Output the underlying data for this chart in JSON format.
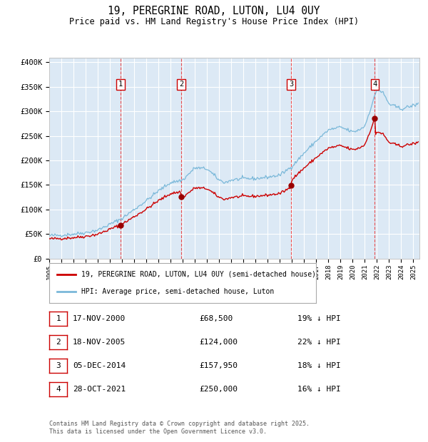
{
  "title": "19, PEREGRINE ROAD, LUTON, LU4 0UY",
  "subtitle": "Price paid vs. HM Land Registry's House Price Index (HPI)",
  "ylim": [
    0,
    410000
  ],
  "yticks": [
    0,
    50000,
    100000,
    150000,
    200000,
    250000,
    300000,
    350000,
    400000
  ],
  "ytick_labels": [
    "£0",
    "£50K",
    "£100K",
    "£150K",
    "£200K",
    "£250K",
    "£300K",
    "£350K",
    "£400K"
  ],
  "xlim_start": 1995.0,
  "xlim_end": 2025.5,
  "background_color": "#ffffff",
  "plot_bg_color": "#dce9f5",
  "grid_color": "#ffffff",
  "hpi_color": "#7ab8d9",
  "price_color": "#cc0000",
  "sale_marker_color": "#990000",
  "vline_color": "#ee3333",
  "transactions": [
    {
      "label": "1",
      "date_num": 2000.88,
      "price": 68500
    },
    {
      "label": "2",
      "date_num": 2005.88,
      "price": 124000
    },
    {
      "label": "3",
      "date_num": 2014.92,
      "price": 157950
    },
    {
      "label": "4",
      "date_num": 2021.82,
      "price": 250000
    }
  ],
  "legend_price_label": "19, PEREGRINE ROAD, LUTON, LU4 0UY (semi-detached house)",
  "legend_hpi_label": "HPI: Average price, semi-detached house, Luton",
  "table_rows": [
    {
      "num": "1",
      "date": "17-NOV-2000",
      "price": "£68,500",
      "hpi": "19% ↓ HPI"
    },
    {
      "num": "2",
      "date": "18-NOV-2005",
      "price": "£124,000",
      "hpi": "22% ↓ HPI"
    },
    {
      "num": "3",
      "date": "05-DEC-2014",
      "price": "£157,950",
      "hpi": "18% ↓ HPI"
    },
    {
      "num": "4",
      "date": "28-OCT-2021",
      "price": "£250,000",
      "hpi": "16% ↓ HPI"
    }
  ],
  "footnote": "Contains HM Land Registry data © Crown copyright and database right 2025.\nThis data is licensed under the Open Government Licence v3.0."
}
